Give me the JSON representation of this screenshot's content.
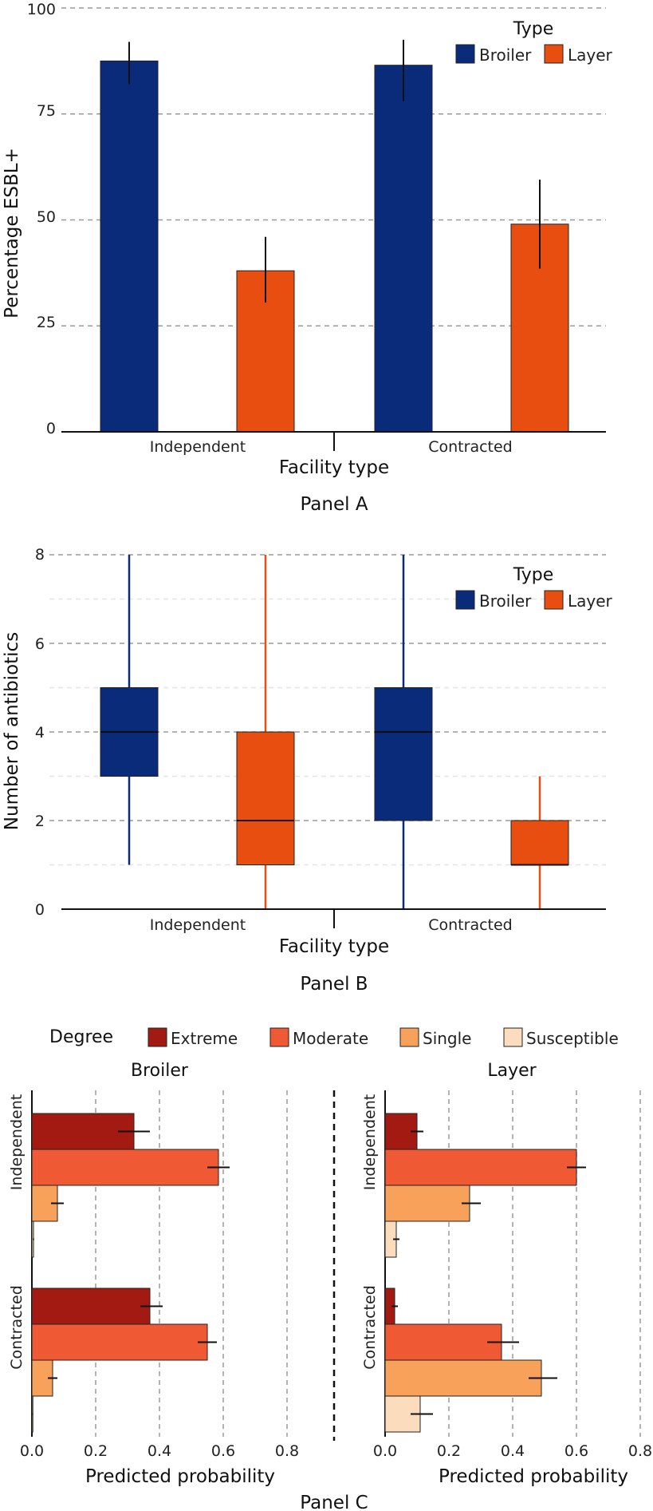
{
  "chart_data": [
    {
      "panel": "Panel A",
      "type": "bar",
      "ylabel": "Percentage ESBL+",
      "xlabel": "Facility type",
      "ylim": [
        0,
        100
      ],
      "yticks": [
        "0",
        "25",
        "50",
        "75",
        "100"
      ],
      "categories": [
        "Independent",
        "Contracted"
      ],
      "legend": {
        "title": "Type",
        "position": "top-right",
        "entries": [
          "Broiler",
          "Layer"
        ]
      },
      "colors": {
        "Broiler": "#0a2a7a",
        "Layer": "#e84e0f"
      },
      "series": [
        {
          "name": "Broiler",
          "values": [
            87.5,
            86.5
          ],
          "err_low": [
            82,
            78
          ],
          "err_high": [
            92,
            92.5
          ]
        },
        {
          "name": "Layer",
          "values": [
            38,
            49
          ],
          "err_low": [
            30.5,
            38.5
          ],
          "err_high": [
            46,
            59.5
          ]
        }
      ]
    },
    {
      "panel": "Panel B",
      "type": "box",
      "ylabel": "Number of antibiotics",
      "xlabel": "Facility type",
      "ylim": [
        0,
        8
      ],
      "yticks": [
        "0",
        "2",
        "4",
        "6",
        "8"
      ],
      "categories": [
        "Independent",
        "Contracted"
      ],
      "legend": {
        "title": "Type",
        "position": "top-right",
        "entries": [
          "Broiler",
          "Layer"
        ]
      },
      "colors": {
        "Broiler": "#0a2a7a",
        "Layer": "#e84e0f"
      },
      "series": [
        {
          "name": "Broiler",
          "boxes": [
            {
              "min": 1,
              "q1": 3,
              "median": 4,
              "q3": 5,
              "max": 8
            },
            {
              "min": 0,
              "q1": 2,
              "median": 4,
              "q3": 5,
              "max": 8
            }
          ]
        },
        {
          "name": "Layer",
          "boxes": [
            {
              "min": 0,
              "q1": 1,
              "median": 2,
              "q3": 4,
              "max": 8
            },
            {
              "min": 0,
              "q1": 1,
              "median": 1,
              "q3": 2,
              "max": 3
            }
          ]
        }
      ]
    },
    {
      "panel": "Panel C",
      "type": "bar",
      "orientation": "horizontal",
      "xlabel": "Predicted probability",
      "xlim": [
        0,
        0.8
      ],
      "xticks": [
        "0.0",
        "0.2",
        "0.4",
        "0.6",
        "0.8"
      ],
      "legend": {
        "title": "Degree",
        "position": "top",
        "entries": [
          "Extreme",
          "Moderate",
          "Single",
          "Susceptible"
        ]
      },
      "colors": {
        "Extreme": "#a31a12",
        "Moderate": "#ef5a35",
        "Single": "#f7a15a",
        "Susceptible": "#fbdcbc"
      },
      "groups": [
        "Independent",
        "Contracted"
      ],
      "facets": [
        {
          "name": "Broiler",
          "bars": {
            "Independent": [
              {
                "degree": "Extreme",
                "value": 0.32,
                "err": [
                  0.27,
                  0.37
                ]
              },
              {
                "degree": "Moderate",
                "value": 0.585,
                "err": [
                  0.55,
                  0.62
                ]
              },
              {
                "degree": "Single",
                "value": 0.08,
                "err": [
                  0.06,
                  0.1
                ]
              },
              {
                "degree": "Susceptible",
                "value": 0.005,
                "err": [
                  0.003,
                  0.007
                ]
              }
            ],
            "Contracted": [
              {
                "degree": "Extreme",
                "value": 0.37,
                "err": [
                  0.34,
                  0.41
                ]
              },
              {
                "degree": "Moderate",
                "value": 0.55,
                "err": [
                  0.52,
                  0.58
                ]
              },
              {
                "degree": "Single",
                "value": 0.065,
                "err": [
                  0.05,
                  0.08
                ]
              },
              {
                "degree": "Susceptible",
                "value": 0.003,
                "err": [
                  0.002,
                  0.004
                ]
              }
            ]
          }
        },
        {
          "name": "Layer",
          "bars": {
            "Independent": [
              {
                "degree": "Extreme",
                "value": 0.1,
                "err": [
                  0.08,
                  0.12
                ]
              },
              {
                "degree": "Moderate",
                "value": 0.6,
                "err": [
                  0.57,
                  0.63
                ]
              },
              {
                "degree": "Single",
                "value": 0.265,
                "err": [
                  0.24,
                  0.3
                ]
              },
              {
                "degree": "Susceptible",
                "value": 0.035,
                "err": [
                  0.025,
                  0.045
                ]
              }
            ],
            "Contracted": [
              {
                "degree": "Extreme",
                "value": 0.03,
                "err": [
                  0.02,
                  0.04
                ]
              },
              {
                "degree": "Moderate",
                "value": 0.365,
                "err": [
                  0.32,
                  0.42
                ]
              },
              {
                "degree": "Single",
                "value": 0.49,
                "err": [
                  0.45,
                  0.54
                ]
              },
              {
                "degree": "Susceptible",
                "value": 0.11,
                "err": [
                  0.08,
                  0.15
                ]
              }
            ]
          }
        }
      ]
    }
  ]
}
